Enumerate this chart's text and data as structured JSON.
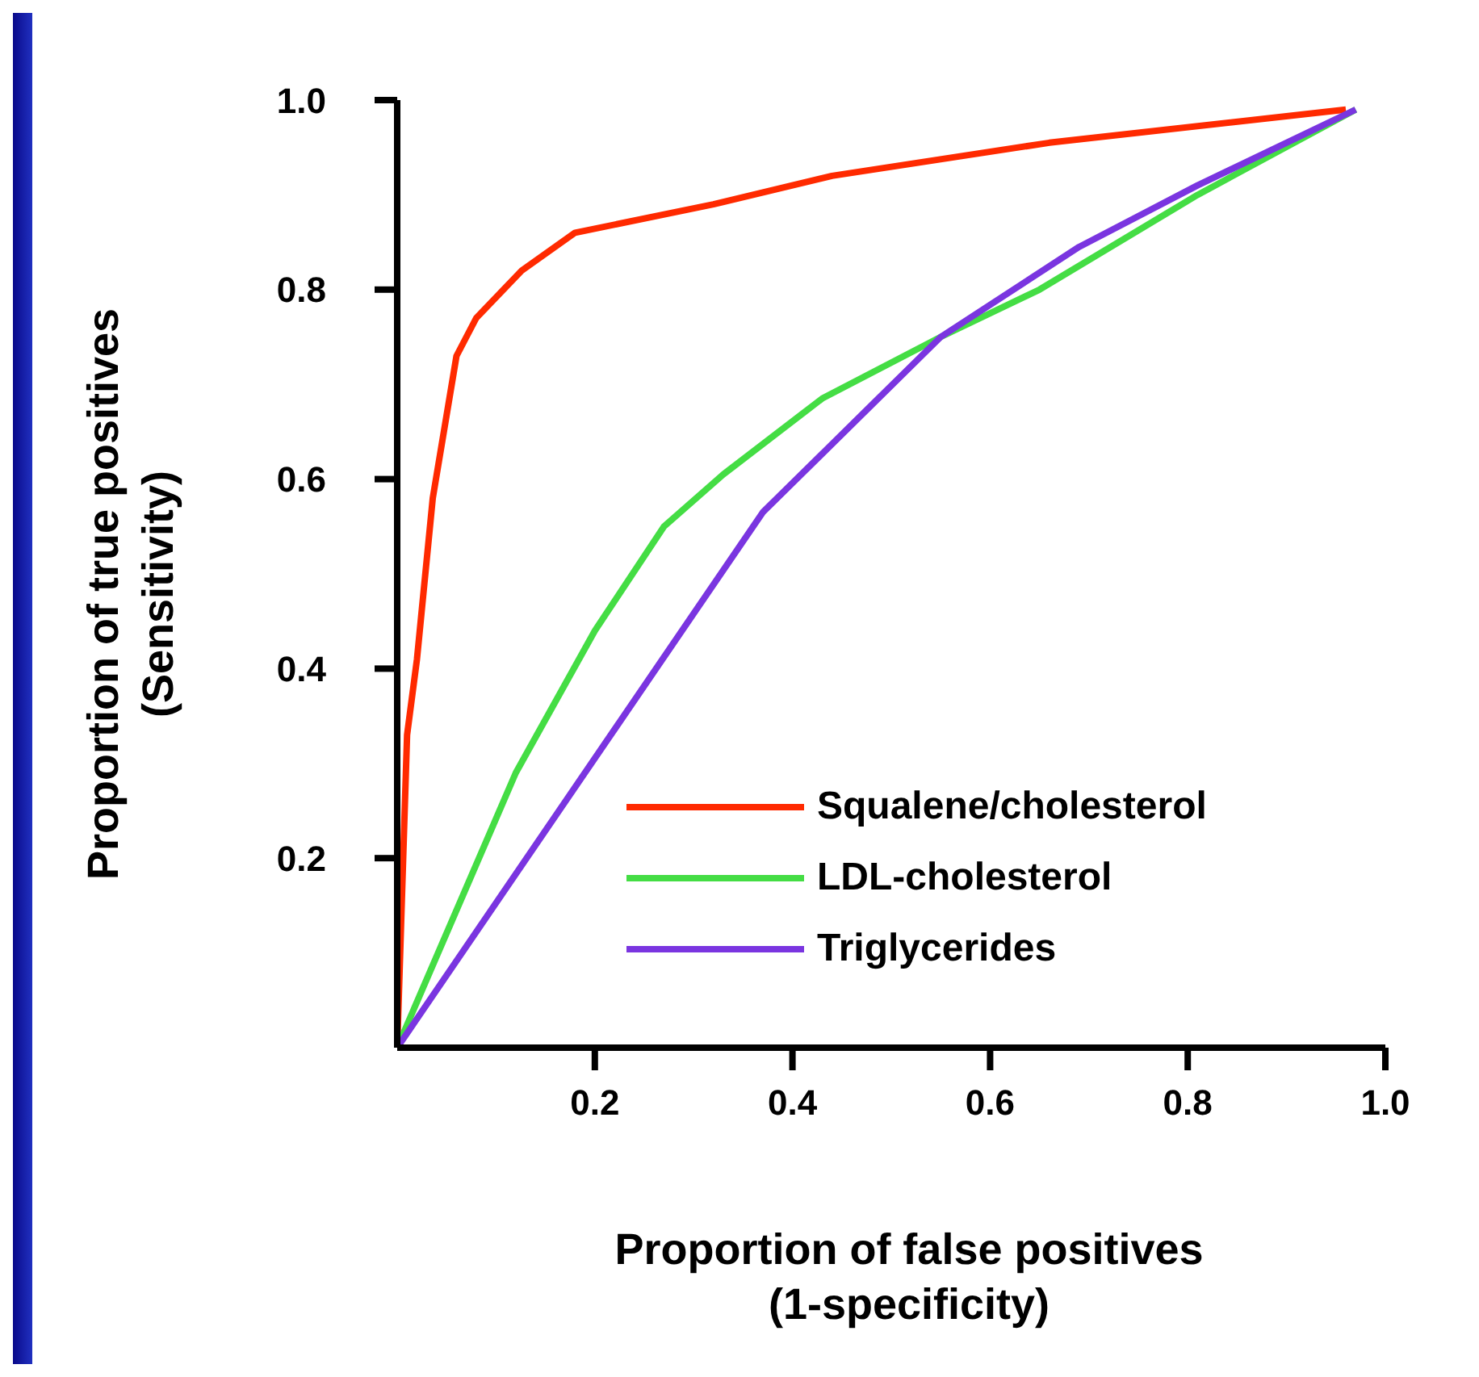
{
  "chart_data": {
    "type": "line",
    "xlabel": "Proportion of false positives\n(1-specificity)",
    "ylabel": "Proportion of true positives\n(Sensitivity)",
    "xlim": [
      0,
      1
    ],
    "ylim": [
      0,
      1
    ],
    "xticks": [
      0.2,
      0.4,
      0.6,
      0.8,
      {
        "value": 1,
        "label": "1.0"
      }
    ],
    "yticks": [
      0.2,
      0.4,
      0.6,
      0.8,
      {
        "value": 1,
        "label": "1.0"
      }
    ],
    "grid": false,
    "legend": "bottom right",
    "marker": "none",
    "line_style": "solid",
    "series": [
      {
        "name": "Squalene/cholesterol",
        "color": "#ff2a00",
        "x": [
          0,
          0.01,
          0.02,
          0.036,
          0.06,
          0.08,
          0.126,
          0.18,
          0.32,
          0.44,
          0.66,
          0.96
        ],
        "values": [
          0,
          0.33,
          0.41,
          0.58,
          0.73,
          0.77,
          0.82,
          0.86,
          0.89,
          0.92,
          0.955,
          0.99
        ]
      },
      {
        "name": "LDL-cholesterol",
        "color": "#44dd44",
        "x": [
          0,
          0.12,
          0.2,
          0.27,
          0.33,
          0.43,
          0.55,
          0.65,
          0.81,
          0.97
        ],
        "values": [
          0,
          0.29,
          0.44,
          0.55,
          0.605,
          0.685,
          0.75,
          0.8,
          0.9,
          0.99
        ]
      },
      {
        "name": "Triglycerides",
        "color": "#7a35e0",
        "x": [
          0,
          0.37,
          0.55,
          0.69,
          0.81,
          0.97
        ],
        "values": [
          0,
          0.565,
          0.75,
          0.845,
          0.91,
          0.99
        ]
      }
    ]
  }
}
